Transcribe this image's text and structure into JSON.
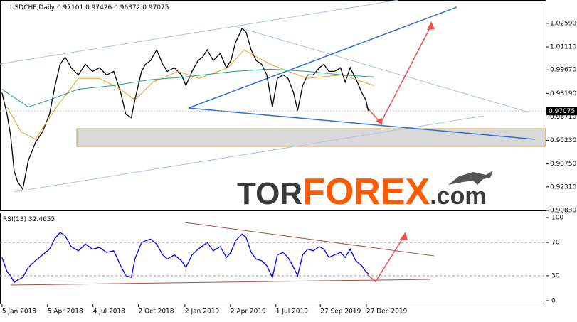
{
  "header": {
    "symbol": "USDCHF,Daily",
    "open": "0.97101",
    "high": "0.97426",
    "low": "0.96872",
    "close": "0.97075"
  },
  "watermark": {
    "tor": "TOR",
    "forex": "FOREX",
    "domain": ".com"
  },
  "chart_data": [
    {
      "type": "line",
      "xlim": [
        "2018-01-01",
        "2020-12-16"
      ],
      "ylim": [
        0.9083,
        1.0397
      ],
      "yticks": [
        {
          "value": 1.0259,
          "label": "1.02590"
        },
        {
          "value": 1.0111,
          "label": "1.01110"
        },
        {
          "value": 0.9967,
          "label": "0.99670"
        },
        {
          "value": 0.9819,
          "label": "0.98190"
        },
        {
          "value": 0.9671,
          "label": "0.96710"
        },
        {
          "value": 0.9523,
          "label": "0.95230"
        },
        {
          "value": 0.9375,
          "label": "0.93750"
        },
        {
          "value": 0.9231,
          "label": "0.92310"
        },
        {
          "value": 0.9083,
          "label": "0.90830"
        }
      ],
      "last_price": {
        "value": 0.97075,
        "label": "0.97075"
      },
      "series": [
        {
          "color": "#000000",
          "x": [
            "2018-01-05",
            "2018-01-15",
            "2018-01-22",
            "2018-01-29",
            "2018-02-05",
            "2018-02-15",
            "2018-02-26",
            "2018-03-12",
            "2018-03-26",
            "2018-04-09",
            "2018-04-20",
            "2018-04-30",
            "2018-05-10",
            "2018-05-22",
            "2018-06-05",
            "2018-06-19",
            "2018-07-03",
            "2018-07-17",
            "2018-07-31",
            "2018-08-14",
            "2018-08-28",
            "2018-09-07",
            "2018-09-18",
            "2018-09-25",
            "2018-10-08",
            "2018-10-16",
            "2018-10-26",
            "2018-11-07",
            "2018-11-19",
            "2018-11-28",
            "2018-12-12",
            "2018-12-26",
            "2019-01-04",
            "2019-01-16",
            "2019-01-28",
            "2019-02-06",
            "2019-02-15",
            "2019-02-27",
            "2019-03-13",
            "2019-03-25",
            "2019-04-03",
            "2019-04-12",
            "2019-04-25",
            "2019-05-03",
            "2019-05-13",
            "2019-05-23",
            "2019-06-03",
            "2019-06-13",
            "2019-06-24",
            "2019-07-04",
            "2019-07-15",
            "2019-07-25",
            "2019-08-05",
            "2019-08-13",
            "2019-08-23",
            "2019-09-02",
            "2019-09-13",
            "2019-09-25",
            "2019-10-04",
            "2019-10-14",
            "2019-10-25",
            "2019-11-06",
            "2019-11-15",
            "2019-11-25",
            "2019-12-06",
            "2019-12-18",
            "2019-12-26",
            "2019-12-31"
          ],
          "values": [
            0.9823,
            0.9688,
            0.9554,
            0.933,
            0.9262,
            0.9217,
            0.9397,
            0.9509,
            0.9576,
            0.9688,
            0.9868,
            1.0002,
            1.0047,
            0.998,
            0.9935,
            1.0002,
            0.9957,
            0.998,
            0.9935,
            0.9957,
            0.9823,
            0.9688,
            0.9666,
            0.9778,
            0.9957,
            1.0002,
            1.0025,
            1.0092,
            1.0002,
            0.9957,
            0.998,
            0.9935,
            0.9868,
            0.9957,
            1.0025,
            1.0047,
            1.0092,
            1.0025,
            1.007,
            0.998,
            1.0025,
            1.0137,
            1.0227,
            1.0204,
            1.0092,
            1.0025,
            1.0002,
            0.9935,
            0.9733,
            0.9913,
            0.9935,
            0.9913,
            0.9823,
            0.9711,
            0.9868,
            0.9935,
            0.9935,
            0.998,
            1.0002,
            0.9957,
            0.9957,
            0.998,
            0.989,
            0.998,
            0.9913,
            0.9823,
            0.9778,
            0.97075
          ]
        },
        {
          "color": "#e8a020",
          "x": [
            "2018-01-15",
            "2018-02-12",
            "2018-03-12",
            "2018-04-23",
            "2018-06-05",
            "2018-07-17",
            "2018-08-28",
            "2018-09-25",
            "2018-10-31",
            "2018-12-19",
            "2019-01-30",
            "2019-03-28",
            "2019-04-29",
            "2019-06-20",
            "2019-09-01",
            "2019-11-09",
            "2020-01-11"
          ],
          "values": [
            0.9733,
            0.9576,
            0.9531,
            0.9733,
            0.9913,
            0.9913,
            0.9845,
            0.9778,
            0.989,
            0.9957,
            0.9913,
            0.998,
            1.0092,
            1.0002,
            0.9913,
            0.9935,
            0.9868
          ]
        },
        {
          "color": "#20a090",
          "x": [
            "2018-01-05",
            "2018-02-26",
            "2018-04-09",
            "2018-06-05",
            "2018-08-14",
            "2018-10-24",
            "2019-01-02",
            "2019-04-10",
            "2019-06-20",
            "2019-09-01",
            "2019-11-09",
            "2020-01-11"
          ],
          "values": [
            0.9845,
            0.9733,
            0.9778,
            0.9845,
            0.9868,
            0.9904,
            0.9922,
            0.9957,
            0.9971,
            0.9957,
            0.9935,
            0.9922
          ]
        }
      ]
    },
    {
      "type": "line",
      "name": "RSI(13)",
      "last_value": 32.4655,
      "ylim": [
        0,
        100
      ],
      "yticks": [
        100,
        70,
        30,
        0
      ],
      "levels": [
        70,
        30
      ],
      "xticks": [
        {
          "value": "2018-01-05",
          "label": "5 Jan 2018"
        },
        {
          "value": "2018-04-05",
          "label": "5 Apr 2018"
        },
        {
          "value": "2018-07-04",
          "label": "4 Jul 2018"
        },
        {
          "value": "2018-10-02",
          "label": "2 Oct 2018"
        },
        {
          "value": "2019-01-02",
          "label": "2 Jan 2019"
        },
        {
          "value": "2019-04-02",
          "label": "2 Apr 2019"
        },
        {
          "value": "2019-07-01",
          "label": "1 Jul 2019"
        },
        {
          "value": "2019-09-27",
          "label": "27 Sep 2019"
        },
        {
          "value": "2019-12-27",
          "label": "27 Dec 2019"
        }
      ],
      "series": [
        {
          "color": "#0000ff",
          "values": [
            52,
            35,
            30,
            22,
            25,
            28,
            40,
            48,
            55,
            62,
            75,
            82,
            78,
            65,
            60,
            68,
            62,
            64,
            58,
            60,
            42,
            30,
            28,
            50,
            70,
            72,
            74,
            68,
            55,
            50,
            55,
            48,
            40,
            55,
            62,
            66,
            70,
            60,
            65,
            52,
            58,
            72,
            80,
            76,
            58,
            50,
            48,
            42,
            28,
            55,
            58,
            52,
            40,
            30,
            55,
            62,
            60,
            65,
            62,
            52,
            55,
            58,
            52,
            62,
            48,
            42,
            35,
            32.4655
          ]
        }
      ]
    }
  ]
}
